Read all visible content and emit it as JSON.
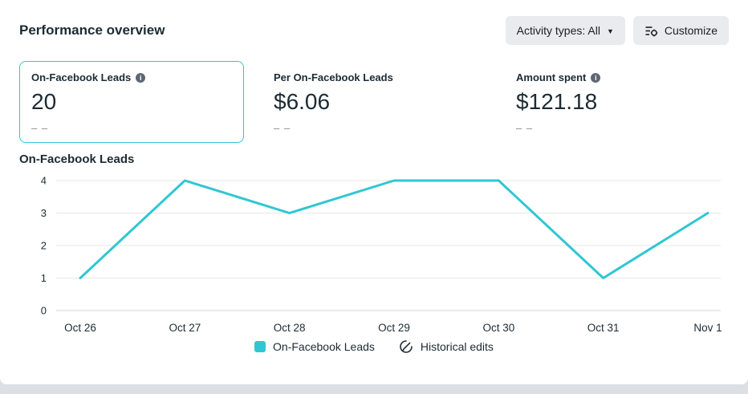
{
  "panel": {
    "title": "Performance overview"
  },
  "toolbar": {
    "activity_button": {
      "label": "Activity types: All"
    },
    "customize_button": {
      "label": "Customize"
    }
  },
  "icons": {
    "caret_down": "▼",
    "info_glyph": "i"
  },
  "metrics": [
    {
      "label": "On-Facebook Leads",
      "value": "20",
      "delta": "– –",
      "has_info": true,
      "selected": true
    },
    {
      "label": "Per On-Facebook Leads",
      "value": "$6.06",
      "delta": "– –",
      "has_info": false,
      "selected": false
    },
    {
      "label": "Amount spent",
      "value": "$121.18",
      "delta": "– –",
      "has_info": true,
      "selected": false
    }
  ],
  "chart_section": {
    "title": "On-Facebook Leads"
  },
  "chart_data": {
    "type": "line",
    "title": "On-Facebook Leads",
    "categories": [
      "Oct 26",
      "Oct 27",
      "Oct 28",
      "Oct 29",
      "Oct 30",
      "Oct 31",
      "Nov 1"
    ],
    "series": [
      {
        "name": "On-Facebook Leads",
        "values": [
          1,
          4,
          3,
          4,
          4,
          1,
          3
        ]
      }
    ],
    "xlabel": "",
    "ylabel": "",
    "ylim": [
      0,
      4
    ],
    "yticks": [
      0,
      1,
      2,
      3,
      4
    ],
    "line_color": "#2fc7d2",
    "grid": true,
    "legend_position": "bottom"
  },
  "legend": {
    "items": [
      {
        "label": "On-Facebook Leads",
        "icon": "swatch"
      },
      {
        "label": "Historical edits",
        "icon": "historical-edits-icon"
      }
    ]
  }
}
